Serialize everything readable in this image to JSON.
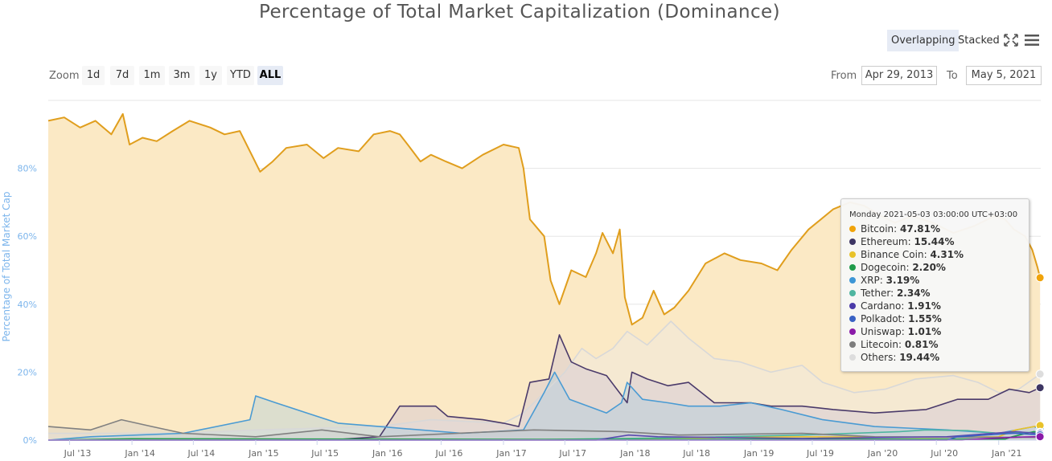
{
  "chart_data": {
    "type": "area",
    "title": "Percentage of Total Market Capitalization (Dominance)",
    "ylabel": "Percentage of Total Market Cap",
    "ylim": [
      0,
      100
    ],
    "yticks": [
      "0%",
      "20%",
      "40%",
      "60%",
      "80%"
    ],
    "ytick_values": [
      0,
      20,
      40,
      60,
      80
    ],
    "xlim": [
      "2013-04-29",
      "2021-05-05"
    ],
    "xticks": [
      {
        "label": "Jul '13",
        "date": "2013-07-01"
      },
      {
        "label": "Jan '14",
        "date": "2014-01-01"
      },
      {
        "label": "Jul '14",
        "date": "2014-07-01"
      },
      {
        "label": "Jan '15",
        "date": "2015-01-01"
      },
      {
        "label": "Jul '15",
        "date": "2015-07-01"
      },
      {
        "label": "Jan '16",
        "date": "2016-01-01"
      },
      {
        "label": "Jul '16",
        "date": "2016-07-01"
      },
      {
        "label": "Jan '17",
        "date": "2017-01-01"
      },
      {
        "label": "Jul '17",
        "date": "2017-07-01"
      },
      {
        "label": "Jan '18",
        "date": "2018-01-01"
      },
      {
        "label": "Jul '18",
        "date": "2018-07-01"
      },
      {
        "label": "Jan '19",
        "date": "2019-01-01"
      },
      {
        "label": "Jul '19",
        "date": "2019-07-01"
      },
      {
        "label": "Jan '20",
        "date": "2020-01-01"
      },
      {
        "label": "Jul '20",
        "date": "2020-07-01"
      },
      {
        "label": "Jan '21",
        "date": "2021-01-01"
      }
    ],
    "grid": true,
    "legend": "none",
    "series": [
      {
        "name": "Bitcoin",
        "color": "#e09e1d",
        "fill": "#fbe9c5",
        "points": [
          [
            "2013-04-29",
            94
          ],
          [
            "2013-06-15",
            95
          ],
          [
            "2013-08-01",
            92
          ],
          [
            "2013-09-15",
            94
          ],
          [
            "2013-11-01",
            90
          ],
          [
            "2013-12-05",
            96
          ],
          [
            "2013-12-25",
            87
          ],
          [
            "2014-02-01",
            89
          ],
          [
            "2014-03-15",
            88
          ],
          [
            "2014-05-01",
            91
          ],
          [
            "2014-06-20",
            94
          ],
          [
            "2014-08-20",
            92
          ],
          [
            "2014-10-01",
            90
          ],
          [
            "2014-11-15",
            91
          ],
          [
            "2014-12-20",
            84
          ],
          [
            "2015-01-14",
            79
          ],
          [
            "2015-02-20",
            82
          ],
          [
            "2015-04-01",
            86
          ],
          [
            "2015-06-01",
            87
          ],
          [
            "2015-07-20",
            83
          ],
          [
            "2015-09-01",
            86
          ],
          [
            "2015-11-01",
            85
          ],
          [
            "2015-12-15",
            90
          ],
          [
            "2016-02-01",
            91
          ],
          [
            "2016-03-01",
            90
          ],
          [
            "2016-04-01",
            86
          ],
          [
            "2016-05-01",
            82
          ],
          [
            "2016-06-01",
            84
          ],
          [
            "2016-07-15",
            82
          ],
          [
            "2016-09-01",
            80
          ],
          [
            "2016-11-01",
            84
          ],
          [
            "2017-01-01",
            87
          ],
          [
            "2017-02-15",
            86
          ],
          [
            "2017-03-01",
            80
          ],
          [
            "2017-03-20",
            65
          ],
          [
            "2017-05-01",
            60
          ],
          [
            "2017-05-20",
            47
          ],
          [
            "2017-06-15",
            40
          ],
          [
            "2017-07-20",
            50
          ],
          [
            "2017-09-01",
            48
          ],
          [
            "2017-10-01",
            55
          ],
          [
            "2017-10-20",
            61
          ],
          [
            "2017-11-20",
            55
          ],
          [
            "2017-12-10",
            62
          ],
          [
            "2017-12-25",
            42
          ],
          [
            "2018-01-15",
            34
          ],
          [
            "2018-02-15",
            36
          ],
          [
            "2018-03-20",
            44
          ],
          [
            "2018-04-20",
            37
          ],
          [
            "2018-05-20",
            39
          ],
          [
            "2018-07-01",
            44
          ],
          [
            "2018-08-20",
            52
          ],
          [
            "2018-10-15",
            55
          ],
          [
            "2018-12-01",
            53
          ],
          [
            "2019-02-01",
            52
          ],
          [
            "2019-03-20",
            50
          ],
          [
            "2019-05-01",
            56
          ],
          [
            "2019-06-20",
            62
          ],
          [
            "2019-09-01",
            68
          ],
          [
            "2019-10-20",
            70
          ],
          [
            "2019-12-01",
            69
          ],
          [
            "2020-01-20",
            66
          ],
          [
            "2020-03-01",
            64
          ],
          [
            "2020-04-20",
            66
          ],
          [
            "2020-06-20",
            64
          ],
          [
            "2020-08-20",
            61
          ],
          [
            "2020-10-20",
            63
          ],
          [
            "2020-12-20",
            66
          ],
          [
            "2021-01-20",
            65
          ],
          [
            "2021-02-15",
            62
          ],
          [
            "2021-03-20",
            60
          ],
          [
            "2021-04-10",
            56
          ],
          [
            "2021-04-25",
            51
          ],
          [
            "2021-05-03",
            47.81
          ]
        ]
      },
      {
        "name": "Others",
        "color": "#d8d8d8",
        "fill": "rgba(235,235,235,0.35)",
        "points": [
          [
            "2013-04-29",
            2
          ],
          [
            "2014-06-01",
            2
          ],
          [
            "2015-01-01",
            3
          ],
          [
            "2016-01-01",
            4
          ],
          [
            "2016-06-01",
            6
          ],
          [
            "2017-01-01",
            5
          ],
          [
            "2017-03-01",
            8
          ],
          [
            "2017-05-01",
            14
          ],
          [
            "2017-07-01",
            20
          ],
          [
            "2017-08-20",
            27
          ],
          [
            "2017-10-01",
            24
          ],
          [
            "2017-11-20",
            27
          ],
          [
            "2018-01-01",
            32
          ],
          [
            "2018-03-01",
            28
          ],
          [
            "2018-05-10",
            35
          ],
          [
            "2018-07-01",
            30
          ],
          [
            "2018-09-15",
            24
          ],
          [
            "2018-12-01",
            23
          ],
          [
            "2019-03-01",
            20
          ],
          [
            "2019-06-01",
            22
          ],
          [
            "2019-08-01",
            17
          ],
          [
            "2019-11-01",
            14
          ],
          [
            "2020-02-01",
            15
          ],
          [
            "2020-05-01",
            18
          ],
          [
            "2020-08-20",
            19
          ],
          [
            "2020-11-01",
            17
          ],
          [
            "2021-01-01",
            14
          ],
          [
            "2021-03-01",
            15
          ],
          [
            "2021-05-03",
            19.44
          ]
        ]
      },
      {
        "name": "Ethereum",
        "color": "#4a3a6a",
        "fill": "rgba(200,190,215,0.35)",
        "points": [
          [
            "2013-04-29",
            0
          ],
          [
            "2015-08-01",
            0
          ],
          [
            "2016-01-01",
            1
          ],
          [
            "2016-03-01",
            10
          ],
          [
            "2016-06-15",
            10
          ],
          [
            "2016-07-20",
            7
          ],
          [
            "2016-11-01",
            6
          ],
          [
            "2017-01-01",
            5
          ],
          [
            "2017-02-15",
            4
          ],
          [
            "2017-03-20",
            17
          ],
          [
            "2017-05-15",
            18
          ],
          [
            "2017-06-15",
            31
          ],
          [
            "2017-07-20",
            23
          ],
          [
            "2017-09-01",
            21
          ],
          [
            "2017-11-01",
            19
          ],
          [
            "2018-01-01",
            11
          ],
          [
            "2018-01-15",
            20
          ],
          [
            "2018-03-01",
            18
          ],
          [
            "2018-05-01",
            16
          ],
          [
            "2018-07-01",
            17
          ],
          [
            "2018-09-15",
            11
          ],
          [
            "2019-01-01",
            11
          ],
          [
            "2019-03-01",
            10
          ],
          [
            "2019-06-01",
            10
          ],
          [
            "2019-09-01",
            9
          ],
          [
            "2020-01-01",
            8
          ],
          [
            "2020-06-01",
            9
          ],
          [
            "2020-09-01",
            12
          ],
          [
            "2020-12-01",
            12
          ],
          [
            "2021-02-01",
            15
          ],
          [
            "2021-04-01",
            14
          ],
          [
            "2021-05-03",
            15.44
          ]
        ]
      },
      {
        "name": "XRP",
        "color": "#4a9bd3",
        "fill": "rgba(150,200,230,0.3)",
        "points": [
          [
            "2013-04-29",
            0
          ],
          [
            "2013-09-01",
            1
          ],
          [
            "2014-06-01",
            2
          ],
          [
            "2014-12-15",
            6
          ],
          [
            "2015-01-01",
            13
          ],
          [
            "2015-03-01",
            11
          ],
          [
            "2015-06-01",
            8
          ],
          [
            "2015-09-01",
            5
          ],
          [
            "2016-01-01",
            4
          ],
          [
            "2016-09-01",
            2
          ],
          [
            "2017-03-01",
            3
          ],
          [
            "2017-05-01",
            14
          ],
          [
            "2017-06-01",
            20
          ],
          [
            "2017-07-15",
            12
          ],
          [
            "2017-11-01",
            8
          ],
          [
            "2017-12-15",
            11
          ],
          [
            "2018-01-01",
            17
          ],
          [
            "2018-02-15",
            12
          ],
          [
            "2018-05-01",
            11
          ],
          [
            "2018-07-01",
            10
          ],
          [
            "2018-10-01",
            10
          ],
          [
            "2019-01-01",
            11
          ],
          [
            "2019-04-01",
            9
          ],
          [
            "2019-08-01",
            6
          ],
          [
            "2020-01-01",
            4
          ],
          [
            "2020-08-01",
            3
          ],
          [
            "2021-01-01",
            2
          ],
          [
            "2021-04-15",
            4
          ],
          [
            "2021-05-03",
            3.19
          ]
        ]
      },
      {
        "name": "Binance Coin",
        "color": "#e8c22a",
        "fill": "none",
        "points": [
          [
            "2013-04-29",
            0
          ],
          [
            "2017-07-01",
            0
          ],
          [
            "2018-01-01",
            0.5
          ],
          [
            "2019-06-01",
            1
          ],
          [
            "2020-06-01",
            0.8
          ],
          [
            "2021-01-01",
            1
          ],
          [
            "2021-02-20",
            3
          ],
          [
            "2021-05-03",
            4.31
          ]
        ]
      },
      {
        "name": "Tether",
        "color": "#4fb5a0",
        "fill": "none",
        "points": [
          [
            "2013-04-29",
            0
          ],
          [
            "2017-01-01",
            0
          ],
          [
            "2018-06-01",
            0.7
          ],
          [
            "2019-06-01",
            1.5
          ],
          [
            "2020-03-15",
            2.5
          ],
          [
            "2020-06-01",
            3
          ],
          [
            "2020-10-01",
            2.8
          ],
          [
            "2021-01-01",
            2
          ],
          [
            "2021-05-03",
            2.34
          ]
        ]
      },
      {
        "name": "Litecoin",
        "color": "#808080",
        "fill": "rgba(200,200,200,0.3)",
        "points": [
          [
            "2013-04-29",
            4
          ],
          [
            "2013-09-01",
            3
          ],
          [
            "2013-12-01",
            6
          ],
          [
            "2014-03-01",
            4
          ],
          [
            "2014-06-01",
            2
          ],
          [
            "2015-01-01",
            1
          ],
          [
            "2015-07-15",
            3
          ],
          [
            "2016-01-01",
            1
          ],
          [
            "2017-04-01",
            3
          ],
          [
            "2017-12-15",
            2.5
          ],
          [
            "2018-06-01",
            1.5
          ],
          [
            "2019-06-01",
            2
          ],
          [
            "2020-01-01",
            1
          ],
          [
            "2021-05-03",
            0.81
          ]
        ]
      },
      {
        "name": "Dogecoin",
        "color": "#1f9b4a",
        "fill": "none",
        "points": [
          [
            "2013-04-29",
            0
          ],
          [
            "2014-01-01",
            0.4
          ],
          [
            "2018-01-01",
            0.2
          ],
          [
            "2021-01-20",
            0.3
          ],
          [
            "2021-02-10",
            1
          ],
          [
            "2021-04-15",
            2.5
          ],
          [
            "2021-05-03",
            2.2
          ]
        ]
      },
      {
        "name": "Cardano",
        "color": "#5a4ab0",
        "fill": "none",
        "points": [
          [
            "2013-04-29",
            0
          ],
          [
            "2017-10-01",
            0
          ],
          [
            "2018-01-05",
            1.5
          ],
          [
            "2018-04-01",
            1
          ],
          [
            "2019-06-01",
            0.5
          ],
          [
            "2020-08-01",
            1
          ],
          [
            "2021-02-20",
            2.5
          ],
          [
            "2021-05-03",
            1.91
          ]
        ]
      },
      {
        "name": "Polkadot",
        "color": "#3a62c4",
        "fill": "none",
        "points": [
          [
            "2013-04-29",
            0
          ],
          [
            "2020-08-01",
            0
          ],
          [
            "2020-09-01",
            1
          ],
          [
            "2021-02-15",
            2
          ],
          [
            "2021-05-03",
            1.55
          ]
        ]
      },
      {
        "name": "Uniswap",
        "color": "#8a1aa8",
        "fill": "none",
        "points": [
          [
            "2013-04-29",
            0
          ],
          [
            "2020-09-15",
            0
          ],
          [
            "2020-11-01",
            0.3
          ],
          [
            "2021-03-01",
            0.9
          ],
          [
            "2021-05-03",
            1.01
          ]
        ]
      }
    ]
  },
  "toolbar": {
    "overlapping_label": "Overlapping",
    "stacked_label": "Stacked",
    "active_mode": "Overlapping",
    "fullscreen_icon": "fullscreen-icon",
    "menu_icon": "hamburger-menu-icon"
  },
  "zoom": {
    "label": "Zoom",
    "buttons": [
      "1d",
      "7d",
      "1m",
      "3m",
      "1y",
      "YTD",
      "ALL"
    ],
    "active": "ALL"
  },
  "range": {
    "from_label": "From",
    "from_value": "Apr 29, 2013",
    "to_label": "To",
    "to_value": "May 5, 2021"
  },
  "tooltip": {
    "header": "Monday 2021-05-03 03:00:00 UTC+03:00",
    "items": [
      {
        "name": "Bitcoin",
        "value": "47.81%",
        "color": "#f0a30a"
      },
      {
        "name": "Ethereum",
        "value": "15.44%",
        "color": "#3d3563"
      },
      {
        "name": "Binance Coin",
        "value": "4.31%",
        "color": "#e8c22a"
      },
      {
        "name": "Dogecoin",
        "value": "2.20%",
        "color": "#1f9b4a"
      },
      {
        "name": "XRP",
        "value": "3.19%",
        "color": "#3d96d6"
      },
      {
        "name": "Tether",
        "value": "2.34%",
        "color": "#4fb5a0"
      },
      {
        "name": "Cardano",
        "value": "1.91%",
        "color": "#4a3aa8"
      },
      {
        "name": "Polkadot",
        "value": "1.55%",
        "color": "#3a62c4"
      },
      {
        "name": "Uniswap",
        "value": "1.01%",
        "color": "#8a1aa8"
      },
      {
        "name": "Litecoin",
        "value": "0.81%",
        "color": "#7d7d7d"
      },
      {
        "name": "Others",
        "value": "19.44%",
        "color": "#dddddd"
      }
    ]
  }
}
